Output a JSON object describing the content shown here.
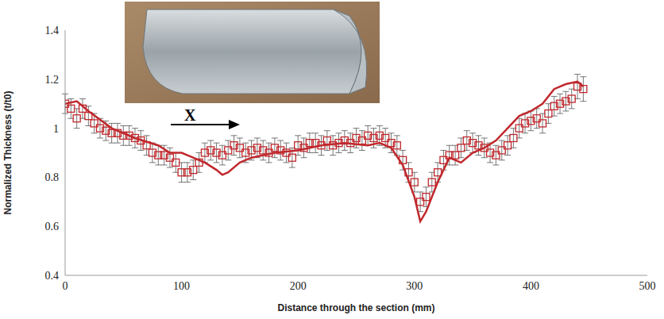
{
  "chart_data": {
    "type": "scatter",
    "x_label": "Distance through the section (mm)",
    "y_label": "Normalized Thickness (t/t0)",
    "annotations": [
      "X"
    ],
    "xlim": [
      0,
      500
    ],
    "xticks": [
      0,
      100,
      200,
      300,
      400,
      500
    ],
    "ylim": [
      0.4,
      1.4
    ],
    "yticks": [
      0.4,
      0.6,
      0.8,
      1,
      1.2,
      1.4
    ],
    "grid": false,
    "series": [
      {
        "type": "scatter",
        "color": "#c0282d",
        "marker": "square",
        "x": [
          0,
          5,
          10,
          15,
          20,
          25,
          30,
          35,
          40,
          45,
          50,
          55,
          60,
          65,
          70,
          75,
          80,
          85,
          90,
          95,
          100,
          105,
          110,
          115,
          120,
          125,
          130,
          135,
          140,
          145,
          150,
          155,
          160,
          165,
          170,
          175,
          180,
          185,
          190,
          195,
          200,
          205,
          210,
          215,
          220,
          225,
          230,
          235,
          240,
          245,
          250,
          255,
          260,
          265,
          270,
          275,
          280,
          285,
          290,
          295,
          300,
          305,
          310,
          315,
          320,
          325,
          330,
          335,
          340,
          345,
          350,
          355,
          360,
          365,
          370,
          375,
          380,
          385,
          390,
          395,
          400,
          405,
          410,
          415,
          420,
          425,
          430,
          435,
          440,
          445
        ],
        "values": [
          1.1,
          1.08,
          1.04,
          1.08,
          1.05,
          1.02,
          1.0,
          0.99,
          0.98,
          0.98,
          0.97,
          0.97,
          0.96,
          0.95,
          0.93,
          0.9,
          0.89,
          0.89,
          0.88,
          0.86,
          0.82,
          0.82,
          0.83,
          0.86,
          0.9,
          0.91,
          0.9,
          0.89,
          0.91,
          0.93,
          0.92,
          0.9,
          0.91,
          0.92,
          0.91,
          0.9,
          0.92,
          0.91,
          0.9,
          0.88,
          0.93,
          0.92,
          0.94,
          0.94,
          0.93,
          0.95,
          0.93,
          0.94,
          0.95,
          0.94,
          0.96,
          0.95,
          0.97,
          0.96,
          0.97,
          0.96,
          0.94,
          0.93,
          0.87,
          0.82,
          0.78,
          0.7,
          0.72,
          0.78,
          0.82,
          0.87,
          0.89,
          0.89,
          0.92,
          0.95,
          0.94,
          0.93,
          0.92,
          0.9,
          0.89,
          0.91,
          0.93,
          0.96,
          1.0,
          1.02,
          1.03,
          1.04,
          1.02,
          1.06,
          1.09,
          1.1,
          1.11,
          1.12,
          1.17,
          1.16
        ],
        "errors": [
          0.04,
          0.04,
          0.04,
          0.04,
          0.04,
          0.04,
          0.04,
          0.04,
          0.04,
          0.04,
          0.04,
          0.04,
          0.04,
          0.04,
          0.04,
          0.04,
          0.04,
          0.04,
          0.04,
          0.04,
          0.04,
          0.04,
          0.04,
          0.04,
          0.04,
          0.04,
          0.04,
          0.04,
          0.04,
          0.04,
          0.04,
          0.04,
          0.04,
          0.04,
          0.04,
          0.04,
          0.04,
          0.04,
          0.04,
          0.04,
          0.04,
          0.04,
          0.04,
          0.04,
          0.04,
          0.04,
          0.04,
          0.04,
          0.04,
          0.04,
          0.04,
          0.04,
          0.04,
          0.04,
          0.04,
          0.04,
          0.04,
          0.04,
          0.04,
          0.04,
          0.04,
          0.04,
          0.04,
          0.04,
          0.04,
          0.04,
          0.04,
          0.04,
          0.04,
          0.04,
          0.04,
          0.04,
          0.04,
          0.04,
          0.04,
          0.04,
          0.04,
          0.04,
          0.04,
          0.04,
          0.04,
          0.04,
          0.04,
          0.04,
          0.04,
          0.04,
          0.04,
          0.04,
          0.05,
          0.05
        ]
      },
      {
        "type": "line",
        "color": "#c0282d",
        "line_style": "solid",
        "x": [
          0,
          10,
          20,
          40,
          60,
          80,
          90,
          100,
          110,
          120,
          130,
          135,
          140,
          150,
          160,
          180,
          200,
          220,
          240,
          260,
          270,
          280,
          290,
          300,
          305,
          310,
          320,
          330,
          340,
          350,
          360,
          370,
          380,
          390,
          400,
          410,
          420,
          430,
          440,
          445
        ],
        "values": [
          1.1,
          1.11,
          1.07,
          1.0,
          0.96,
          0.93,
          0.9,
          0.9,
          0.88,
          0.86,
          0.83,
          0.81,
          0.82,
          0.86,
          0.88,
          0.9,
          0.91,
          0.93,
          0.94,
          0.93,
          0.94,
          0.92,
          0.85,
          0.72,
          0.62,
          0.66,
          0.78,
          0.88,
          0.86,
          0.9,
          0.92,
          0.95,
          1.0,
          1.05,
          1.07,
          1.1,
          1.16,
          1.18,
          1.19,
          1.17
        ]
      }
    ]
  }
}
